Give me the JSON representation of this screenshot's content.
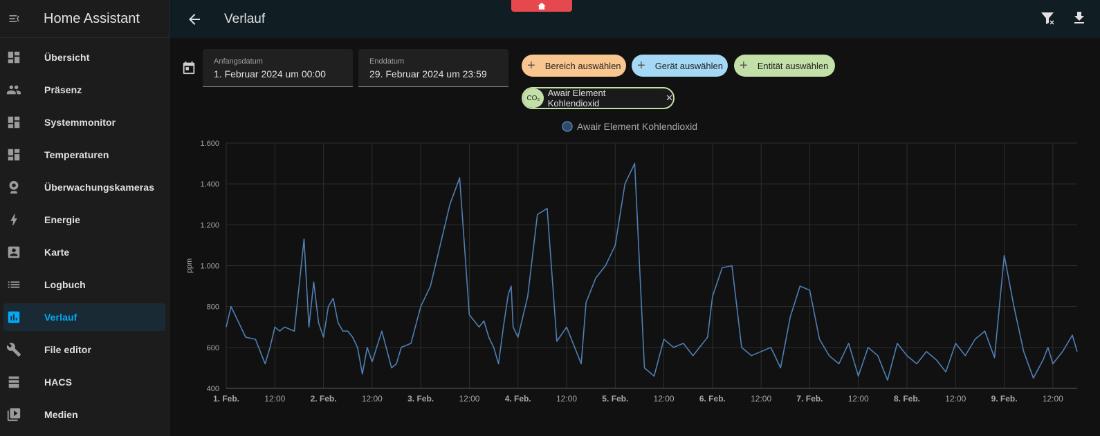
{
  "sidebar": {
    "title": "Home Assistant",
    "items": [
      {
        "label": "Übersicht",
        "icon": "dashboard-icon"
      },
      {
        "label": "Präsenz",
        "icon": "people-icon"
      },
      {
        "label": "Systemmonitor",
        "icon": "dashboard-icon"
      },
      {
        "label": "Temperaturen",
        "icon": "dashboard-icon"
      },
      {
        "label": "Überwachungskameras",
        "icon": "webcam-icon"
      },
      {
        "label": "Energie",
        "icon": "lightning-icon"
      },
      {
        "label": "Karte",
        "icon": "account-box-icon"
      },
      {
        "label": "Logbuch",
        "icon": "list-icon"
      },
      {
        "label": "Verlauf",
        "icon": "chart-box-icon",
        "active": true
      },
      {
        "label": "File editor",
        "icon": "wrench-icon"
      },
      {
        "label": "HACS",
        "icon": "hacs-icon"
      },
      {
        "label": "Medien",
        "icon": "play-box-icon"
      }
    ]
  },
  "header": {
    "title": "Verlauf"
  },
  "filters": {
    "start": {
      "label": "Anfangsdatum",
      "value": "1. Februar 2024 um 00:00"
    },
    "end": {
      "label": "Enddatum",
      "value": "29. Februar 2024 um 23:59"
    },
    "area_label": "Bereich auswählen",
    "device_label": "Gerät auswählen",
    "entity_label": "Entität auswählen",
    "selected_entity": "Awair Element Kohlendioxid",
    "selected_entity_icon": "CO₂"
  },
  "colors": {
    "accent": "#03a9f4",
    "series": "#4f7fb5",
    "area_chip": "#f9c68f",
    "device_chip": "#a4d8f5",
    "entity_chip": "#c2e0a8",
    "red_tab": "#e5484d"
  },
  "chart_data": {
    "type": "line",
    "legend": "Awair Element Kohlendioxid",
    "ylabel": "ppm",
    "ylim": [
      400,
      1600
    ],
    "xlim": [
      0,
      8.75
    ],
    "yticks": [
      "400",
      "600",
      "800",
      "1.000",
      "1.200",
      "1.400",
      "1.600"
    ],
    "xticks": [
      "1. Feb.",
      "12:00",
      "2. Feb.",
      "12:00",
      "3. Feb.",
      "12:00",
      "4. Feb.",
      "12:00",
      "5. Feb.",
      "12:00",
      "6. Feb.",
      "12:00",
      "7. Feb.",
      "12:00",
      "8. Feb.",
      "12:00",
      "9. Feb.",
      "12:00"
    ],
    "grid": true,
    "series": [
      {
        "x": [
          0,
          0.05,
          0.1,
          0.2,
          0.3,
          0.4,
          0.45,
          0.5,
          0.55,
          0.6,
          0.7,
          0.8,
          0.85,
          0.9,
          0.95,
          1.0,
          1.05,
          1.1,
          1.15,
          1.2,
          1.25,
          1.3,
          1.35,
          1.4,
          1.45,
          1.5,
          1.6,
          1.7,
          1.75,
          1.8,
          1.9,
          2.0,
          2.1,
          2.2,
          2.3,
          2.4,
          2.5,
          2.6,
          2.65,
          2.7,
          2.75,
          2.8,
          2.85,
          2.9,
          2.93,
          2.95,
          3.0,
          3.1,
          3.2,
          3.3,
          3.4,
          3.5,
          3.6,
          3.65,
          3.7,
          3.8,
          3.9,
          3.95,
          4.0,
          4.1,
          4.2,
          4.3,
          4.4,
          4.5,
          4.6,
          4.7,
          4.8,
          4.95,
          5.0,
          5.1,
          5.2,
          5.3,
          5.4,
          5.5,
          5.6,
          5.7,
          5.8,
          5.9,
          6.0,
          6.1,
          6.2,
          6.3,
          6.4,
          6.5,
          6.6,
          6.7,
          6.8,
          6.9,
          7.0,
          7.1,
          7.2,
          7.3,
          7.4,
          7.5,
          7.6,
          7.7,
          7.8,
          7.9,
          8.0,
          8.1,
          8.2,
          8.3,
          8.4,
          8.45,
          8.5,
          8.6,
          8.7,
          8.75
        ],
        "y": [
          700,
          800,
          750,
          650,
          640,
          520,
          600,
          700,
          680,
          700,
          680,
          1130,
          700,
          920,
          720,
          650,
          800,
          840,
          720,
          680,
          680,
          650,
          600,
          470,
          600,
          530,
          680,
          500,
          520,
          600,
          620,
          800,
          900,
          1100,
          1300,
          1430,
          760,
          700,
          730,
          650,
          600,
          520,
          700,
          860,
          900,
          700,
          650,
          850,
          1250,
          1280,
          630,
          700,
          580,
          520,
          820,
          940,
          1000,
          1050,
          1100,
          1400,
          1500,
          500,
          460,
          640,
          600,
          620,
          560,
          650,
          850,
          990,
          1000,
          600,
          560,
          580,
          600,
          500,
          750,
          900,
          880,
          640,
          560,
          520,
          620,
          460,
          600,
          560,
          440,
          620,
          560,
          520,
          580,
          540,
          480,
          620,
          560,
          640,
          680,
          550,
          1050,
          800,
          580,
          450,
          540,
          600,
          520,
          580,
          660,
          580
        ]
      }
    ]
  }
}
